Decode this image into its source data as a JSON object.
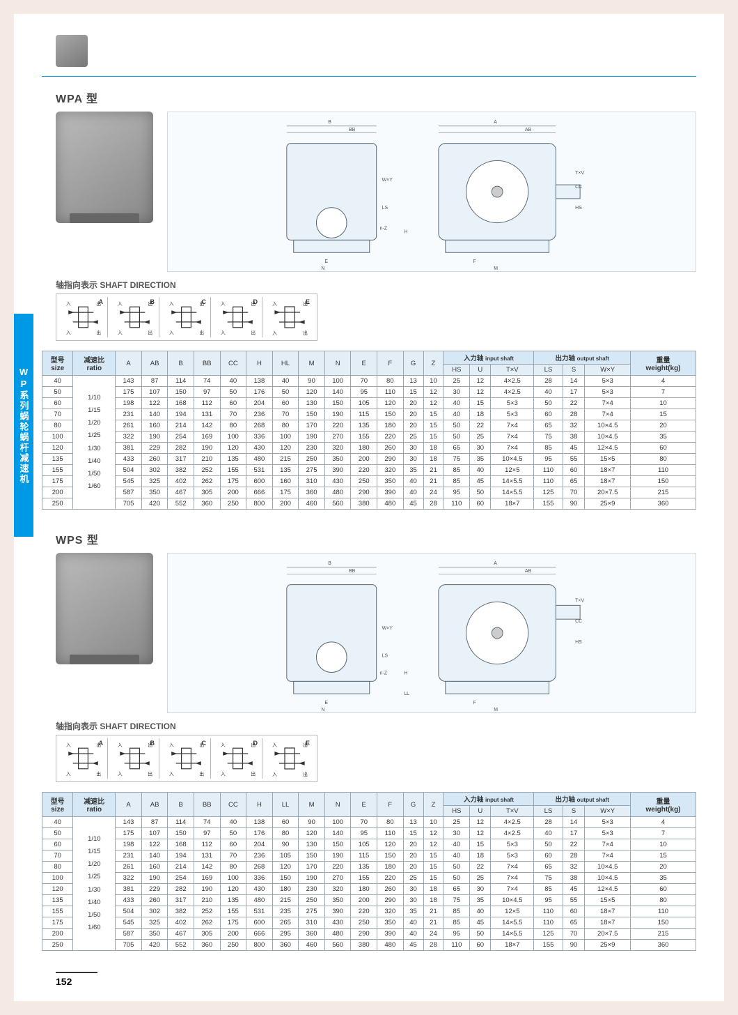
{
  "sideTab": "WP系列蜗轮蜗杆减速机",
  "pageNumber": "152",
  "sections": [
    {
      "title": "WPA 型",
      "shaftLabel": "轴指向表示  SHAFT DIRECTION",
      "shaftLetters": [
        "A",
        "B",
        "C",
        "D",
        "E"
      ],
      "llHeader": "HL"
    },
    {
      "title": "WPS 型",
      "shaftLabel": "轴指向表示  SHAFT DIRECTION",
      "shaftLetters": [
        "A",
        "B",
        "C",
        "D",
        "E"
      ],
      "llHeader": "LL"
    }
  ],
  "table": {
    "headersTop": {
      "size_cn": "型号",
      "size_en": "size",
      "ratio_cn": "减速比",
      "ratio_en": "ratio",
      "input_cn": "入力轴",
      "input_en": "input shaft",
      "output_cn": "出力轴",
      "output_en": "output shaft",
      "weight_cn": "重量",
      "weight_en": "weight(kg)"
    },
    "cols": [
      "A",
      "AB",
      "B",
      "BB",
      "CC",
      "H",
      "HL",
      "M",
      "N",
      "E",
      "F",
      "G",
      "Z",
      "HS",
      "U",
      "T×V",
      "LS",
      "S",
      "W×Y"
    ],
    "ratioText": "1/10\n1/15\n1/20\n1/25\n1/30\n1/40\n1/50\n1/60",
    "rows": [
      {
        "size": "40",
        "v": [
          "143",
          "87",
          "114",
          "74",
          "40",
          "138",
          "40",
          "90",
          "100",
          "70",
          "80",
          "13",
          "10",
          "25",
          "12",
          "4×2.5",
          "28",
          "14",
          "5×3"
        ],
        "w": "4"
      },
      {
        "size": "50",
        "v": [
          "175",
          "107",
          "150",
          "97",
          "50",
          "176",
          "50",
          "120",
          "140",
          "95",
          "110",
          "15",
          "12",
          "30",
          "12",
          "4×2.5",
          "40",
          "17",
          "5×3"
        ],
        "w": "7"
      },
      {
        "size": "60",
        "v": [
          "198",
          "122",
          "168",
          "112",
          "60",
          "204",
          "60",
          "130",
          "150",
          "105",
          "120",
          "20",
          "12",
          "40",
          "15",
          "5×3",
          "50",
          "22",
          "7×4"
        ],
        "w": "10"
      },
      {
        "size": "70",
        "v": [
          "231",
          "140",
          "194",
          "131",
          "70",
          "236",
          "70",
          "150",
          "190",
          "115",
          "150",
          "20",
          "15",
          "40",
          "18",
          "5×3",
          "60",
          "28",
          "7×4"
        ],
        "w": "15"
      },
      {
        "size": "80",
        "v": [
          "261",
          "160",
          "214",
          "142",
          "80",
          "268",
          "80",
          "170",
          "220",
          "135",
          "180",
          "20",
          "15",
          "50",
          "22",
          "7×4",
          "65",
          "32",
          "10×4.5"
        ],
        "w": "20"
      },
      {
        "size": "100",
        "v": [
          "322",
          "190",
          "254",
          "169",
          "100",
          "336",
          "100",
          "190",
          "270",
          "155",
          "220",
          "25",
          "15",
          "50",
          "25",
          "7×4",
          "75",
          "38",
          "10×4.5"
        ],
        "w": "35"
      },
      {
        "size": "120",
        "v": [
          "381",
          "229",
          "282",
          "190",
          "120",
          "430",
          "120",
          "230",
          "320",
          "180",
          "260",
          "30",
          "18",
          "65",
          "30",
          "7×4",
          "85",
          "45",
          "12×4.5"
        ],
        "w": "60"
      },
      {
        "size": "135",
        "v": [
          "433",
          "260",
          "317",
          "210",
          "135",
          "480",
          "215",
          "250",
          "350",
          "200",
          "290",
          "30",
          "18",
          "75",
          "35",
          "10×4.5",
          "95",
          "55",
          "15×5"
        ],
        "w": "80"
      },
      {
        "size": "155",
        "v": [
          "504",
          "302",
          "382",
          "252",
          "155",
          "531",
          "135",
          "275",
          "390",
          "220",
          "320",
          "35",
          "21",
          "85",
          "40",
          "12×5",
          "110",
          "60",
          "18×7"
        ],
        "w": "110"
      },
      {
        "size": "175",
        "v": [
          "545",
          "325",
          "402",
          "262",
          "175",
          "600",
          "160",
          "310",
          "430",
          "250",
          "350",
          "40",
          "21",
          "85",
          "45",
          "14×5.5",
          "110",
          "65",
          "18×7"
        ],
        "w": "150"
      },
      {
        "size": "200",
        "v": [
          "587",
          "350",
          "467",
          "305",
          "200",
          "666",
          "175",
          "360",
          "480",
          "290",
          "390",
          "40",
          "24",
          "95",
          "50",
          "14×5.5",
          "125",
          "70",
          "20×7.5"
        ],
        "w": "215"
      },
      {
        "size": "250",
        "v": [
          "705",
          "420",
          "552",
          "360",
          "250",
          "800",
          "200",
          "460",
          "560",
          "380",
          "480",
          "45",
          "28",
          "110",
          "60",
          "18×7",
          "155",
          "90",
          "25×9"
        ],
        "w": "360"
      }
    ]
  },
  "tableWPS": {
    "rows": [
      {
        "size": "40",
        "v": [
          "143",
          "87",
          "114",
          "74",
          "40",
          "138",
          "60",
          "90",
          "100",
          "70",
          "80",
          "13",
          "10",
          "25",
          "12",
          "4×2.5",
          "28",
          "14",
          "5×3"
        ],
        "w": "4"
      },
      {
        "size": "50",
        "v": [
          "175",
          "107",
          "150",
          "97",
          "50",
          "176",
          "80",
          "120",
          "140",
          "95",
          "110",
          "15",
          "12",
          "30",
          "12",
          "4×2.5",
          "40",
          "17",
          "5×3"
        ],
        "w": "7"
      },
      {
        "size": "60",
        "v": [
          "198",
          "122",
          "168",
          "112",
          "60",
          "204",
          "90",
          "130",
          "150",
          "105",
          "120",
          "20",
          "12",
          "40",
          "15",
          "5×3",
          "50",
          "22",
          "7×4"
        ],
        "w": "10"
      },
      {
        "size": "70",
        "v": [
          "231",
          "140",
          "194",
          "131",
          "70",
          "236",
          "105",
          "150",
          "190",
          "115",
          "150",
          "20",
          "15",
          "40",
          "18",
          "5×3",
          "60",
          "28",
          "7×4"
        ],
        "w": "15"
      },
      {
        "size": "80",
        "v": [
          "261",
          "160",
          "214",
          "142",
          "80",
          "268",
          "120",
          "170",
          "220",
          "135",
          "180",
          "20",
          "15",
          "50",
          "22",
          "7×4",
          "65",
          "32",
          "10×4.5"
        ],
        "w": "20"
      },
      {
        "size": "100",
        "v": [
          "322",
          "190",
          "254",
          "169",
          "100",
          "336",
          "150",
          "190",
          "270",
          "155",
          "220",
          "25",
          "15",
          "50",
          "25",
          "7×4",
          "75",
          "38",
          "10×4.5"
        ],
        "w": "35"
      },
      {
        "size": "120",
        "v": [
          "381",
          "229",
          "282",
          "190",
          "120",
          "430",
          "180",
          "230",
          "320",
          "180",
          "260",
          "30",
          "18",
          "65",
          "30",
          "7×4",
          "85",
          "45",
          "12×4.5"
        ],
        "w": "60"
      },
      {
        "size": "135",
        "v": [
          "433",
          "260",
          "317",
          "210",
          "135",
          "480",
          "215",
          "250",
          "350",
          "200",
          "290",
          "30",
          "18",
          "75",
          "35",
          "10×4.5",
          "95",
          "55",
          "15×5"
        ],
        "w": "80"
      },
      {
        "size": "155",
        "v": [
          "504",
          "302",
          "382",
          "252",
          "155",
          "531",
          "235",
          "275",
          "390",
          "220",
          "320",
          "35",
          "21",
          "85",
          "40",
          "12×5",
          "110",
          "60",
          "18×7"
        ],
        "w": "110"
      },
      {
        "size": "175",
        "v": [
          "545",
          "325",
          "402",
          "262",
          "175",
          "600",
          "265",
          "310",
          "430",
          "250",
          "350",
          "40",
          "21",
          "85",
          "45",
          "14×5.5",
          "110",
          "65",
          "18×7"
        ],
        "w": "150"
      },
      {
        "size": "200",
        "v": [
          "587",
          "350",
          "467",
          "305",
          "200",
          "666",
          "295",
          "360",
          "480",
          "290",
          "390",
          "40",
          "24",
          "95",
          "50",
          "14×5.5",
          "125",
          "70",
          "20×7.5"
        ],
        "w": "215"
      },
      {
        "size": "250",
        "v": [
          "705",
          "420",
          "552",
          "360",
          "250",
          "800",
          "360",
          "460",
          "560",
          "380",
          "480",
          "45",
          "28",
          "110",
          "60",
          "18×7",
          "155",
          "90",
          "25×9"
        ],
        "w": "360"
      }
    ]
  },
  "drawingLabels": [
    "B",
    "BB",
    "A",
    "AB",
    "W×Y",
    "LS",
    "n-Z",
    "C",
    "G",
    "T×V",
    "HS",
    "CC",
    "HL",
    "H",
    "E",
    "N",
    "F",
    "M"
  ]
}
